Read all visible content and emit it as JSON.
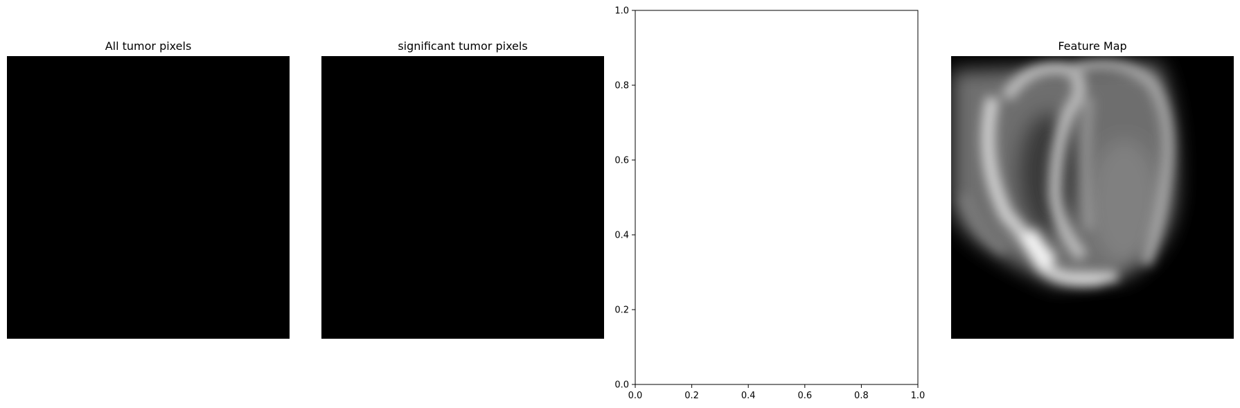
{
  "panels": [
    {
      "title": "All tumor pixels",
      "content": "black image"
    },
    {
      "title": "significant tumor pixels",
      "content": "black image"
    },
    {
      "title": "",
      "content": "empty axes"
    },
    {
      "title": "Feature Map",
      "content": "grayscale blurred feature map"
    }
  ],
  "chart_data": [
    {
      "type": "heatmap",
      "title": "All tumor pixels",
      "axes": "off",
      "colormap": "gray",
      "values": "all zero"
    },
    {
      "type": "heatmap",
      "title": "significant tumor pixels",
      "axes": "off",
      "colormap": "gray",
      "values": "all zero"
    },
    {
      "type": "scatter",
      "title": "",
      "xlabel": "",
      "ylabel": "",
      "xlim": [
        0.0,
        1.0
      ],
      "ylim": [
        0.0,
        1.0
      ],
      "xticks": [
        "0.0",
        "0.2",
        "0.4",
        "0.6",
        "0.8",
        "1.0"
      ],
      "yticks": [
        "0.0",
        "0.2",
        "0.4",
        "0.6",
        "0.8",
        "1.0"
      ],
      "grid": false,
      "series": []
    },
    {
      "type": "heatmap",
      "title": "Feature Map",
      "axes": "off",
      "colormap": "gray"
    }
  ],
  "colors": {
    "background": "#ffffff",
    "image_black": "#000000",
    "axis": "#000000"
  }
}
